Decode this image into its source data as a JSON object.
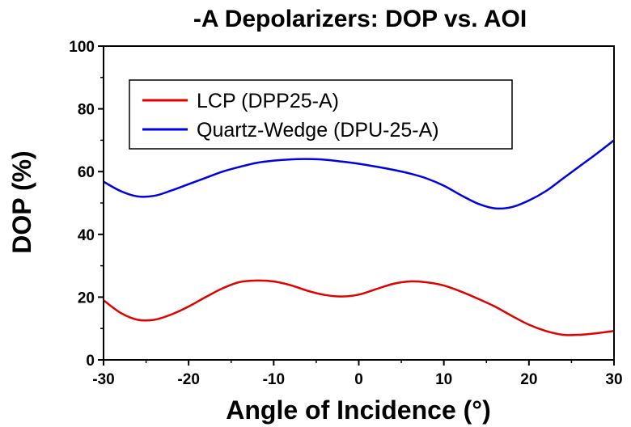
{
  "chart_data": {
    "type": "line",
    "title": "-A Depolarizers: DOP vs. AOI",
    "xlabel": "Angle of Incidence (°)",
    "ylabel": "DOP (%)",
    "xlim": [
      -30,
      30
    ],
    "ylim": [
      0,
      100
    ],
    "xticks": [
      "-30",
      "-20",
      "-10",
      "0",
      "10",
      "20",
      "30"
    ],
    "yticks": [
      "0",
      "20",
      "40",
      "60",
      "80",
      "100"
    ],
    "grid": false,
    "legend_position": "top-left",
    "series": [
      {
        "name": "LCP (DPP25-A)",
        "color": "#e00000",
        "x": [
          -30,
          -28,
          -26,
          -24,
          -22,
          -20,
          -18,
          -16,
          -14,
          -12,
          -10,
          -8,
          -6,
          -4,
          -2,
          0,
          2,
          4,
          6,
          8,
          10,
          12,
          14,
          16,
          18,
          20,
          22,
          24,
          26,
          28,
          30
        ],
        "y": [
          19.0,
          15.0,
          12.8,
          12.8,
          14.5,
          17.0,
          20.0,
          22.8,
          24.8,
          25.3,
          25.0,
          23.8,
          22.0,
          20.7,
          20.2,
          20.8,
          22.5,
          24.2,
          25.0,
          24.7,
          23.7,
          21.8,
          19.5,
          17.0,
          14.0,
          11.2,
          9.2,
          8.0,
          8.0,
          8.5,
          9.2
        ]
      },
      {
        "name": "Quartz-Wedge (DPU-25-A)",
        "color": "#0000e0",
        "x": [
          -30,
          -28,
          -26,
          -24,
          -22,
          -20,
          -18,
          -16,
          -14,
          -12,
          -10,
          -8,
          -6,
          -4,
          -2,
          0,
          2,
          4,
          6,
          8,
          10,
          12,
          14,
          16,
          18,
          20,
          22,
          24,
          26,
          28,
          30
        ],
        "y": [
          56.8,
          53.8,
          52.1,
          52.3,
          54.0,
          56.0,
          58.0,
          60.0,
          61.5,
          62.8,
          63.5,
          63.9,
          64.0,
          63.8,
          63.2,
          62.5,
          61.6,
          60.6,
          59.4,
          57.8,
          55.5,
          52.5,
          49.8,
          48.3,
          48.7,
          50.8,
          53.8,
          57.8,
          61.8,
          65.8,
          70.0
        ]
      }
    ]
  }
}
